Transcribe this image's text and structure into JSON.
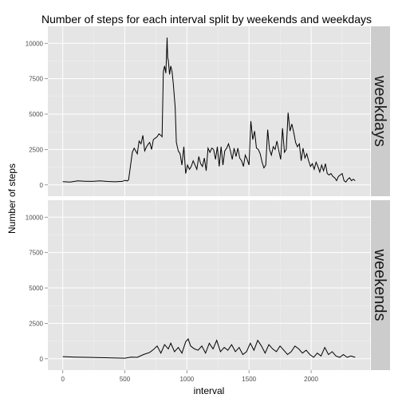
{
  "chart_data": {
    "type": "line",
    "title": "Number of steps for each interval split by weekends and weekdays",
    "xlabel": "interval",
    "ylabel": "Number of steps",
    "xlim": [
      -120,
      2475
    ],
    "ylim": [
      -800,
      11200
    ],
    "x_ticks": [
      0,
      500,
      1000,
      1500,
      2000
    ],
    "y_ticks": [
      0,
      2500,
      5000,
      7500,
      10000
    ],
    "grid": true,
    "panels": [
      {
        "label": "weekdays",
        "series": [
          {
            "x": [
              0,
              60,
              120,
              180,
              240,
              300,
              360,
              420,
              480,
              500,
              520,
              530,
              545,
              560,
              575,
              600,
              615,
              630,
              645,
              660,
              675,
              690,
              700,
              715,
              730,
              745,
              760,
              775,
              790,
              800,
              810,
              820,
              830,
              835,
              840,
              845,
              850,
              860,
              870,
              880,
              890,
              905,
              915,
              930,
              945,
              960,
              975,
              990,
              1005,
              1020,
              1035,
              1050,
              1065,
              1080,
              1095,
              1110,
              1125,
              1140,
              1155,
              1170,
              1185,
              1200,
              1215,
              1230,
              1245,
              1260,
              1275,
              1290,
              1305,
              1320,
              1335,
              1350,
              1365,
              1380,
              1395,
              1410,
              1425,
              1440,
              1455,
              1470,
              1485,
              1500,
              1515,
              1530,
              1545,
              1560,
              1575,
              1590,
              1605,
              1620,
              1635,
              1650,
              1665,
              1680,
              1695,
              1710,
              1725,
              1740,
              1755,
              1770,
              1785,
              1800,
              1815,
              1830,
              1845,
              1860,
              1875,
              1890,
              1905,
              1920,
              1935,
              1950,
              1965,
              1980,
              1995,
              2010,
              2025,
              2040,
              2055,
              2070,
              2085,
              2100,
              2115,
              2130,
              2145,
              2160,
              2175,
              2190,
              2205,
              2220,
              2235,
              2250,
              2265,
              2280,
              2295,
              2310,
              2325,
              2340,
              2355
            ],
            "y": [
              230,
              200,
              280,
              260,
              250,
              280,
              240,
              220,
              250,
              320,
              280,
              350,
              1300,
              2300,
              2600,
              2200,
              3100,
              2900,
              3500,
              2400,
              2700,
              2900,
              3000,
              2500,
              3200,
              3300,
              3400,
              3600,
              3500,
              3400,
              8000,
              8400,
              7900,
              9000,
              10400,
              9000,
              8800,
              7800,
              8400,
              8000,
              7200,
              5500,
              3000,
              2400,
              2200,
              1400,
              2700,
              800,
              1400,
              1100,
              1300,
              1700,
              1400,
              1100,
              2000,
              1500,
              1300,
              1900,
              1000,
              2600,
              2300,
              2600,
              2500,
              1800,
              2700,
              1300,
              2700,
              1400,
              2400,
              2600,
              2900,
              2400,
              1800,
              2600,
              2000,
              2600,
              1900,
              1700,
              1300,
              2100,
              1800,
              1400,
              4500,
              3200,
              3800,
              2600,
              2500,
              2200,
              1600,
              1200,
              1400,
              3900,
              2500,
              2100,
              2700,
              2500,
              3100,
              2400,
              1800,
              4000,
              2300,
              2500,
              5100,
              3800,
              4300,
              3700,
              3000,
              2700,
              2900,
              1700,
              2600,
              1900,
              2200,
              1700,
              1300,
              1500,
              1100,
              1600,
              1300,
              900,
              1400,
              1000,
              1500,
              800,
              700,
              800,
              600,
              500,
              300,
              600,
              700,
              800,
              300,
              200,
              400,
              500,
              300,
              400,
              300
            ]
          }
        ]
      },
      {
        "label": "weekends",
        "series": [
          {
            "x": [
              0,
              100,
              200,
              300,
              400,
              500,
              550,
              600,
              650,
              700,
              730,
              760,
              790,
              820,
              850,
              870,
              900,
              930,
              960,
              990,
              1010,
              1030,
              1060,
              1090,
              1120,
              1150,
              1180,
              1210,
              1240,
              1270,
              1300,
              1330,
              1360,
              1390,
              1420,
              1450,
              1480,
              1510,
              1540,
              1570,
              1600,
              1630,
              1660,
              1690,
              1720,
              1750,
              1780,
              1810,
              1840,
              1870,
              1900,
              1930,
              1960,
              1990,
              2020,
              2050,
              2080,
              2110,
              2140,
              2170,
              2200,
              2230,
              2260,
              2290,
              2320,
              2355
            ],
            "y": [
              150,
              120,
              100,
              80,
              60,
              40,
              120,
              100,
              300,
              450,
              650,
              900,
              400,
              1000,
              700,
              1100,
              500,
              800,
              400,
              1200,
              1400,
              900,
              700,
              600,
              900,
              400,
              1100,
              700,
              1300,
              500,
              800,
              600,
              1000,
              500,
              800,
              300,
              500,
              1100,
              600,
              1300,
              900,
              400,
              1000,
              700,
              500,
              900,
              600,
              300,
              500,
              900,
              700,
              400,
              600,
              300,
              100,
              400,
              200,
              800,
              300,
              500,
              200,
              100,
              300,
              100,
              200,
              100
            ]
          }
        ]
      }
    ]
  }
}
